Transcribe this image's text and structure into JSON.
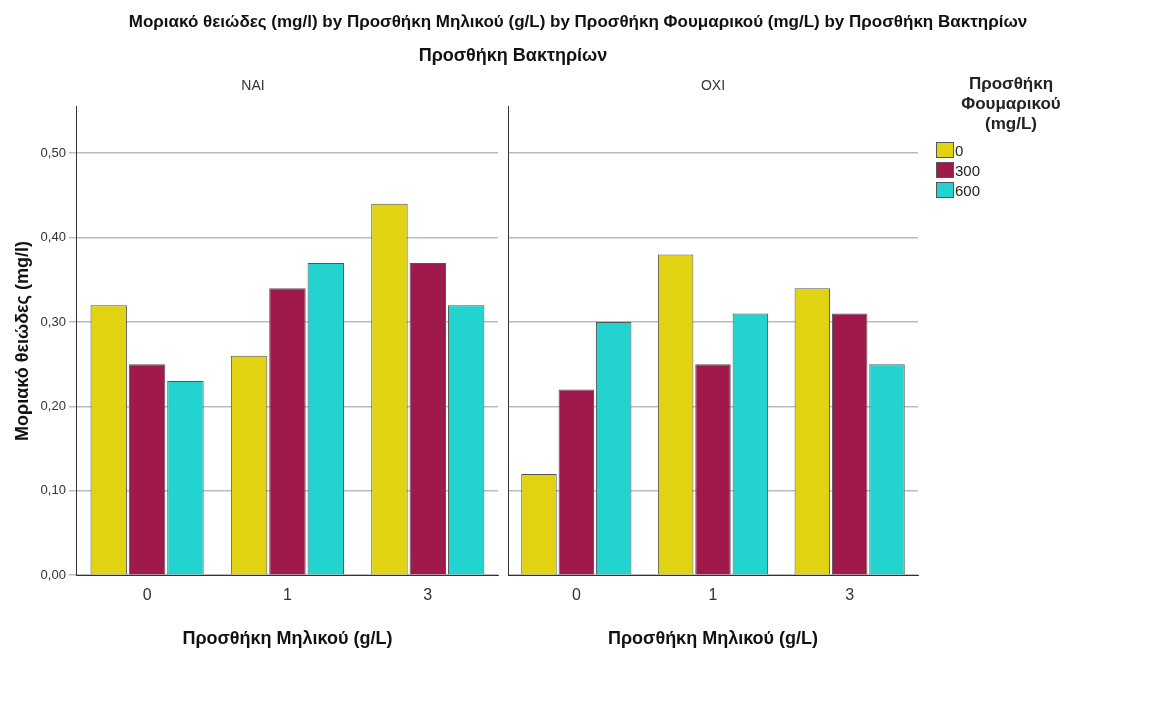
{
  "chart_data": [
    {
      "type": "bar",
      "title": "Μοριακό θειώδες (mg/l) by Προσθήκη Μηλικού (g/L) by Προσθήκη Φουμαρικού (mg/L) by Προσθήκη Βακτηρίων",
      "annotations": [
        "Προσθήκη Βακτηρίων"
      ],
      "subtitle": "ΝΑΙ",
      "xlabel": "Προσθήκη Μηλικού (g/L)",
      "ylabel": "Μοριακό θειώδες (mg/l)",
      "categories": [
        "0",
        "1",
        "3"
      ],
      "series": [
        {
          "color": "#e1d312",
          "values": [
            0.32,
            0.26,
            0.44
          ]
        },
        {
          "color": "#a0194d",
          "values": [
            0.25,
            0.34,
            0.37
          ]
        },
        {
          "color": "#22d3d0",
          "values": [
            0.23,
            0.37,
            0.32
          ]
        }
      ],
      "ylim": [
        0,
        0.555
      ],
      "yticks": [
        {
          "value": 0,
          "label": "0,00"
        },
        {
          "value": 0.1,
          "label": "0,10"
        },
        {
          "value": 0.2,
          "label": "0,20"
        },
        {
          "value": 0.3,
          "label": "0,30"
        },
        {
          "value": 0.4,
          "label": "0,40"
        },
        {
          "value": 0.5,
          "label": "0,50"
        }
      ],
      "grid": "y"
    },
    {
      "type": "bar",
      "subtitle": "ΟΧΙ",
      "xlabel": "Προσθήκη Μηλικού (g/L)",
      "categories": [
        "0",
        "1",
        "3"
      ],
      "legend": "right",
      "legend_title": "Προσθήκη Φουμαρικού (mg/L)",
      "series": [
        {
          "name": "0",
          "color": "#e1d312",
          "values": [
            0.12,
            0.38,
            0.34
          ]
        },
        {
          "name": "300",
          "color": "#a0194d",
          "values": [
            0.22,
            0.25,
            0.31
          ]
        },
        {
          "name": "600",
          "color": "#22d3d0",
          "values": [
            0.3,
            0.31,
            0.25
          ]
        }
      ],
      "ylim": [
        0,
        0.555
      ],
      "yticks": [
        {
          "value": 0,
          "label": null
        },
        {
          "value": 0.1,
          "label": null
        },
        {
          "value": 0.2,
          "label": null
        },
        {
          "value": 0.3,
          "label": null
        },
        {
          "value": 0.4,
          "label": null
        },
        {
          "value": 0.5,
          "label": null
        }
      ],
      "grid": "y",
      "tick_labels": "x"
    }
  ]
}
